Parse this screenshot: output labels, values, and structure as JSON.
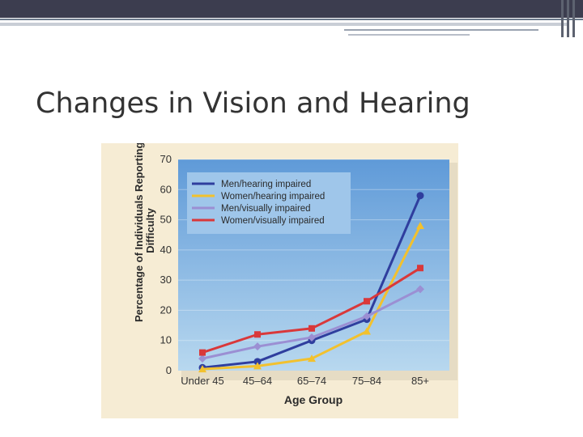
{
  "slide": {
    "title": "Changes in Vision and Hearing"
  },
  "chart_data": {
    "type": "line",
    "xlabel": "Age Group",
    "ylabel_lines": [
      "Percentage of Individuals Reporting",
      "Difficulty"
    ],
    "categories": [
      "Under 45",
      "45–64",
      "65–74",
      "75–84",
      "85+"
    ],
    "ylim": [
      0,
      70
    ],
    "yticks": [
      0,
      10,
      20,
      30,
      40,
      50,
      60,
      70
    ],
    "legend_position": "top-left",
    "series": [
      {
        "name": "Men/hearing impaired",
        "color": "#2f3e9e",
        "marker": "circle",
        "values": [
          1,
          3,
          10,
          17,
          58
        ]
      },
      {
        "name": "Women/hearing impaired",
        "color": "#f2c12e",
        "marker": "triangle",
        "values": [
          0.5,
          1.5,
          4,
          13,
          48
        ]
      },
      {
        "name": "Men/visually impaired",
        "color": "#9b8fd3",
        "marker": "diamond",
        "values": [
          4,
          8,
          11,
          18,
          27
        ]
      },
      {
        "name": "Women/visually impaired",
        "color": "#d9383a",
        "marker": "square",
        "values": [
          6,
          12,
          14,
          23,
          34
        ]
      }
    ],
    "colors": {
      "plot_top": "#5f9ad8",
      "plot_bottom": "#b8d8ef",
      "legend_bg": "#9fc6ea",
      "frame": "#f6ecd4"
    }
  }
}
